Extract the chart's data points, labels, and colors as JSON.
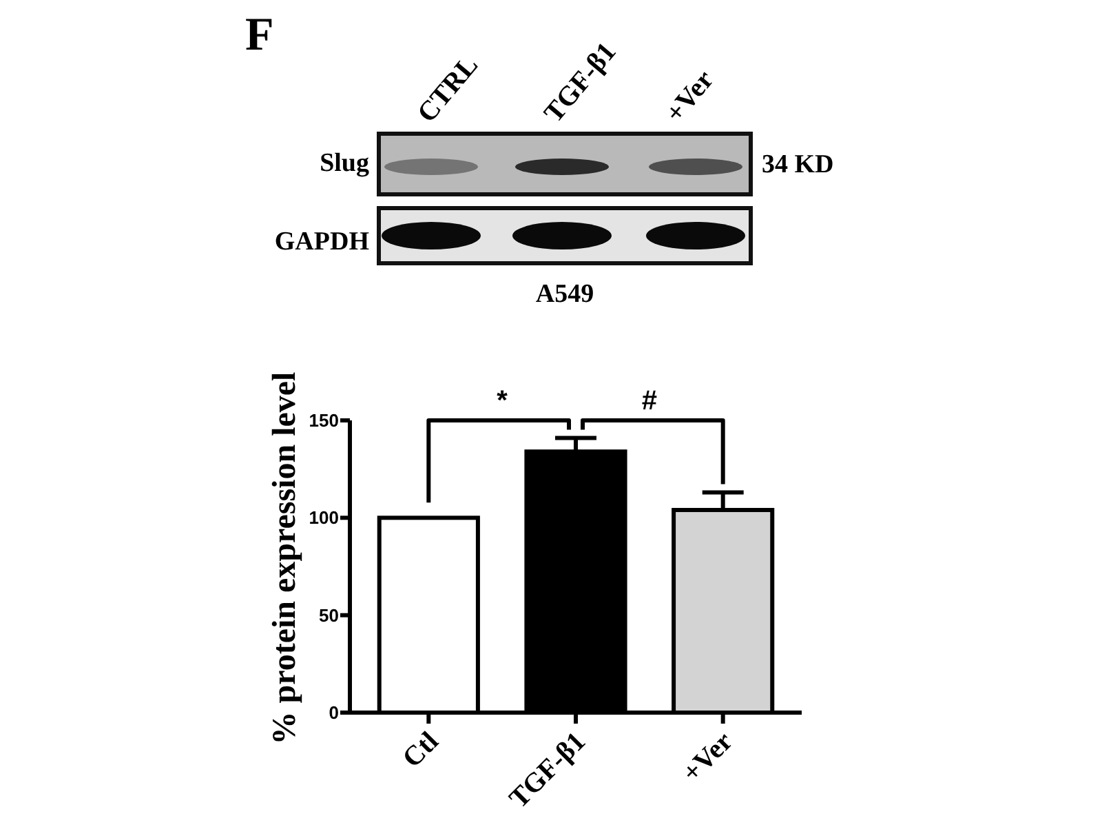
{
  "chart_data": {
    "type": "bar",
    "title": "F",
    "ylabel": "% protein expression level",
    "categories": [
      "Ctl",
      "TGF-β1",
      "+Ver"
    ],
    "values": [
      100,
      134,
      104
    ],
    "colors": [
      "#ffffff",
      "#000000",
      "#d3d3d3"
    ],
    "errors": [
      null,
      [
        134,
        141
      ],
      [
        104,
        113
      ]
    ],
    "ylim": [
      0,
      150
    ],
    "yticks": [
      0,
      50,
      100,
      150
    ],
    "annotations": [
      "CTRL",
      "TGF-β1",
      "+Ver",
      "Slug",
      "34 KD",
      "GAPDH",
      "A549",
      "*",
      "#"
    ]
  }
}
